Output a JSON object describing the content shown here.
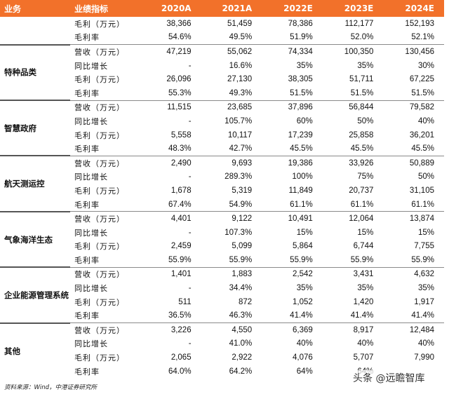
{
  "header": [
    "业务",
    "业绩指标",
    "2020A",
    "2021A",
    "2022E",
    "2023E",
    "2024E"
  ],
  "groups": [
    {
      "name": "",
      "rows": [
        {
          "metric": "毛利（万元）",
          "values": [
            "38,366",
            "51,459",
            "78,386",
            "112,177",
            "152,193"
          ]
        },
        {
          "metric": "毛利率",
          "values": [
            "54.6%",
            "49.5%",
            "51.9%",
            "52.0%",
            "52.1%"
          ]
        }
      ]
    },
    {
      "name": "特种品类",
      "rows": [
        {
          "metric": "营收（万元）",
          "values": [
            "47,219",
            "55,062",
            "74,334",
            "100,350",
            "130,456"
          ]
        },
        {
          "metric": "同比增长",
          "values": [
            "-",
            "16.6%",
            "35%",
            "35%",
            "30%"
          ]
        },
        {
          "metric": "毛利（万元）",
          "values": [
            "26,096",
            "27,130",
            "38,305",
            "51,711",
            "67,225"
          ]
        },
        {
          "metric": "毛利率",
          "values": [
            "55.3%",
            "49.3%",
            "51.5%",
            "51.5%",
            "51.5%"
          ]
        }
      ]
    },
    {
      "name": "智慧政府",
      "rows": [
        {
          "metric": "营收（万元）",
          "values": [
            "11,515",
            "23,685",
            "37,896",
            "56,844",
            "79,582"
          ]
        },
        {
          "metric": "同比增长",
          "values": [
            "-",
            "105.7%",
            "60%",
            "50%",
            "40%"
          ]
        },
        {
          "metric": "毛利（万元）",
          "values": [
            "5,558",
            "10,117",
            "17,239",
            "25,858",
            "36,201"
          ]
        },
        {
          "metric": "毛利率",
          "values": [
            "48.3%",
            "42.7%",
            "45.5%",
            "45.5%",
            "45.5%"
          ]
        }
      ]
    },
    {
      "name": "航天测运控",
      "rows": [
        {
          "metric": "营收（万元）",
          "values": [
            "2,490",
            "9,693",
            "19,386",
            "33,926",
            "50,889"
          ]
        },
        {
          "metric": "同比增长",
          "values": [
            "-",
            "289.3%",
            "100%",
            "75%",
            "50%"
          ]
        },
        {
          "metric": "毛利（万元）",
          "values": [
            "1,678",
            "5,319",
            "11,849",
            "20,737",
            "31,105"
          ]
        },
        {
          "metric": "毛利率",
          "values": [
            "67.4%",
            "54.9%",
            "61.1%",
            "61.1%",
            "61.1%"
          ]
        }
      ]
    },
    {
      "name": "气象海洋生态",
      "rows": [
        {
          "metric": "营收（万元）",
          "values": [
            "4,401",
            "9,122",
            "10,491",
            "12,064",
            "13,874"
          ]
        },
        {
          "metric": "同比增长",
          "values": [
            "-",
            "107.3%",
            "15%",
            "15%",
            "15%"
          ]
        },
        {
          "metric": "毛利（万元）",
          "values": [
            "2,459",
            "5,099",
            "5,864",
            "6,744",
            "7,755"
          ]
        },
        {
          "metric": "毛利率",
          "values": [
            "55.9%",
            "55.9%",
            "55.9%",
            "55.9%",
            "55.9%"
          ]
        }
      ]
    },
    {
      "name": "企业能源管理系统",
      "rows": [
        {
          "metric": "营收（万元）",
          "values": [
            "1,401",
            "1,883",
            "2,542",
            "3,431",
            "4,632"
          ]
        },
        {
          "metric": "同比增长",
          "values": [
            "-",
            "34.4%",
            "35%",
            "35%",
            "35%"
          ]
        },
        {
          "metric": "毛利（万元）",
          "values": [
            "511",
            "872",
            "1,052",
            "1,420",
            "1,917"
          ]
        },
        {
          "metric": "毛利率",
          "values": [
            "36.5%",
            "46.3%",
            "41.4%",
            "41.4%",
            "41.4%"
          ]
        }
      ]
    },
    {
      "name": "其他",
      "rows": [
        {
          "metric": "营收（万元）",
          "values": [
            "3,226",
            "4,550",
            "6,369",
            "8,917",
            "12,484"
          ]
        },
        {
          "metric": "同比增长",
          "values": [
            "-",
            "41.0%",
            "40%",
            "40%",
            "40%"
          ]
        },
        {
          "metric": "毛利（万元）",
          "values": [
            "2,065",
            "2,922",
            "4,076",
            "5,707",
            "7,990"
          ]
        },
        {
          "metric": "毛利率",
          "values": [
            "64.0%",
            "64.2%",
            "64%",
            "64%",
            ""
          ]
        }
      ]
    }
  ],
  "footer": "资料来源：Wind，中港证券研究所",
  "watermark": "头条 @远瞻智库"
}
